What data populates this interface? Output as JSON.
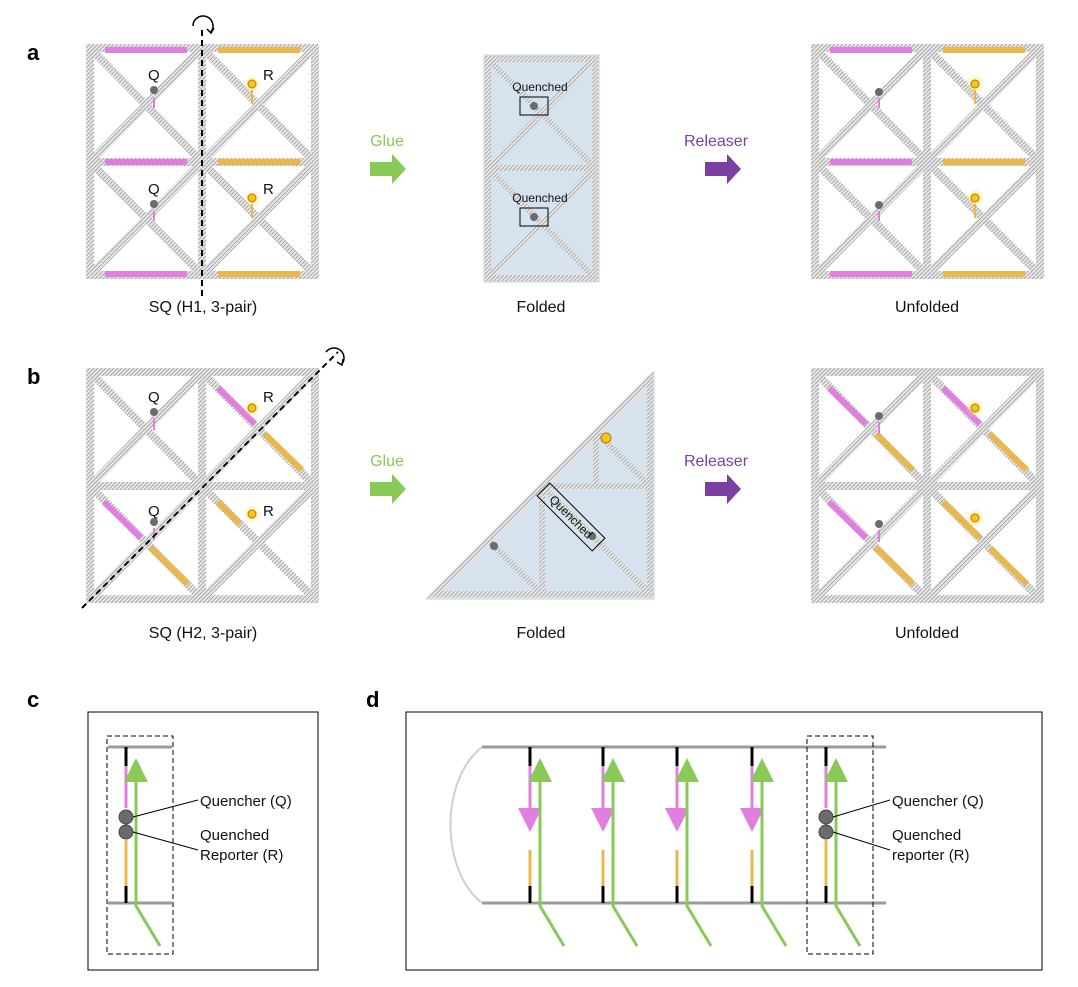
{
  "panels": {
    "a": {
      "letter": "a",
      "left_caption": "SQ (H1, 3-pair)",
      "mid_caption": "Folded",
      "right_caption": "Unfolded",
      "step1": "Glue",
      "step2": "Releaser",
      "quenched_label": "Quenched",
      "q_label": "Q",
      "r_label": "R"
    },
    "b": {
      "letter": "b",
      "left_caption": "SQ (H2, 3-pair)",
      "mid_caption": "Folded",
      "right_caption": "Unfolded",
      "step1": "Glue",
      "step2": "Releaser",
      "quenched_label": "Quenched",
      "q_label": "Q",
      "r_label": "R"
    },
    "c": {
      "letter": "c",
      "quencher_label": "Quencher (Q)",
      "reporter_label_1": "Quenched",
      "reporter_label_2": "Reporter (R)"
    },
    "d": {
      "letter": "d",
      "quencher_label": "Quencher (Q)",
      "reporter_label_1": "Quenched",
      "reporter_label_2": "reporter (R)"
    }
  },
  "colors": {
    "pink": "#e27ee0",
    "gold": "#e8b84a",
    "green": "#88c957",
    "purple": "#7a3fa0",
    "glue_text": "#88c957",
    "releaser_text": "#7a3fa0",
    "folded_fill": "#d6e3ef",
    "quencher": "#6b6b6b",
    "reporter": "#f5c518"
  }
}
